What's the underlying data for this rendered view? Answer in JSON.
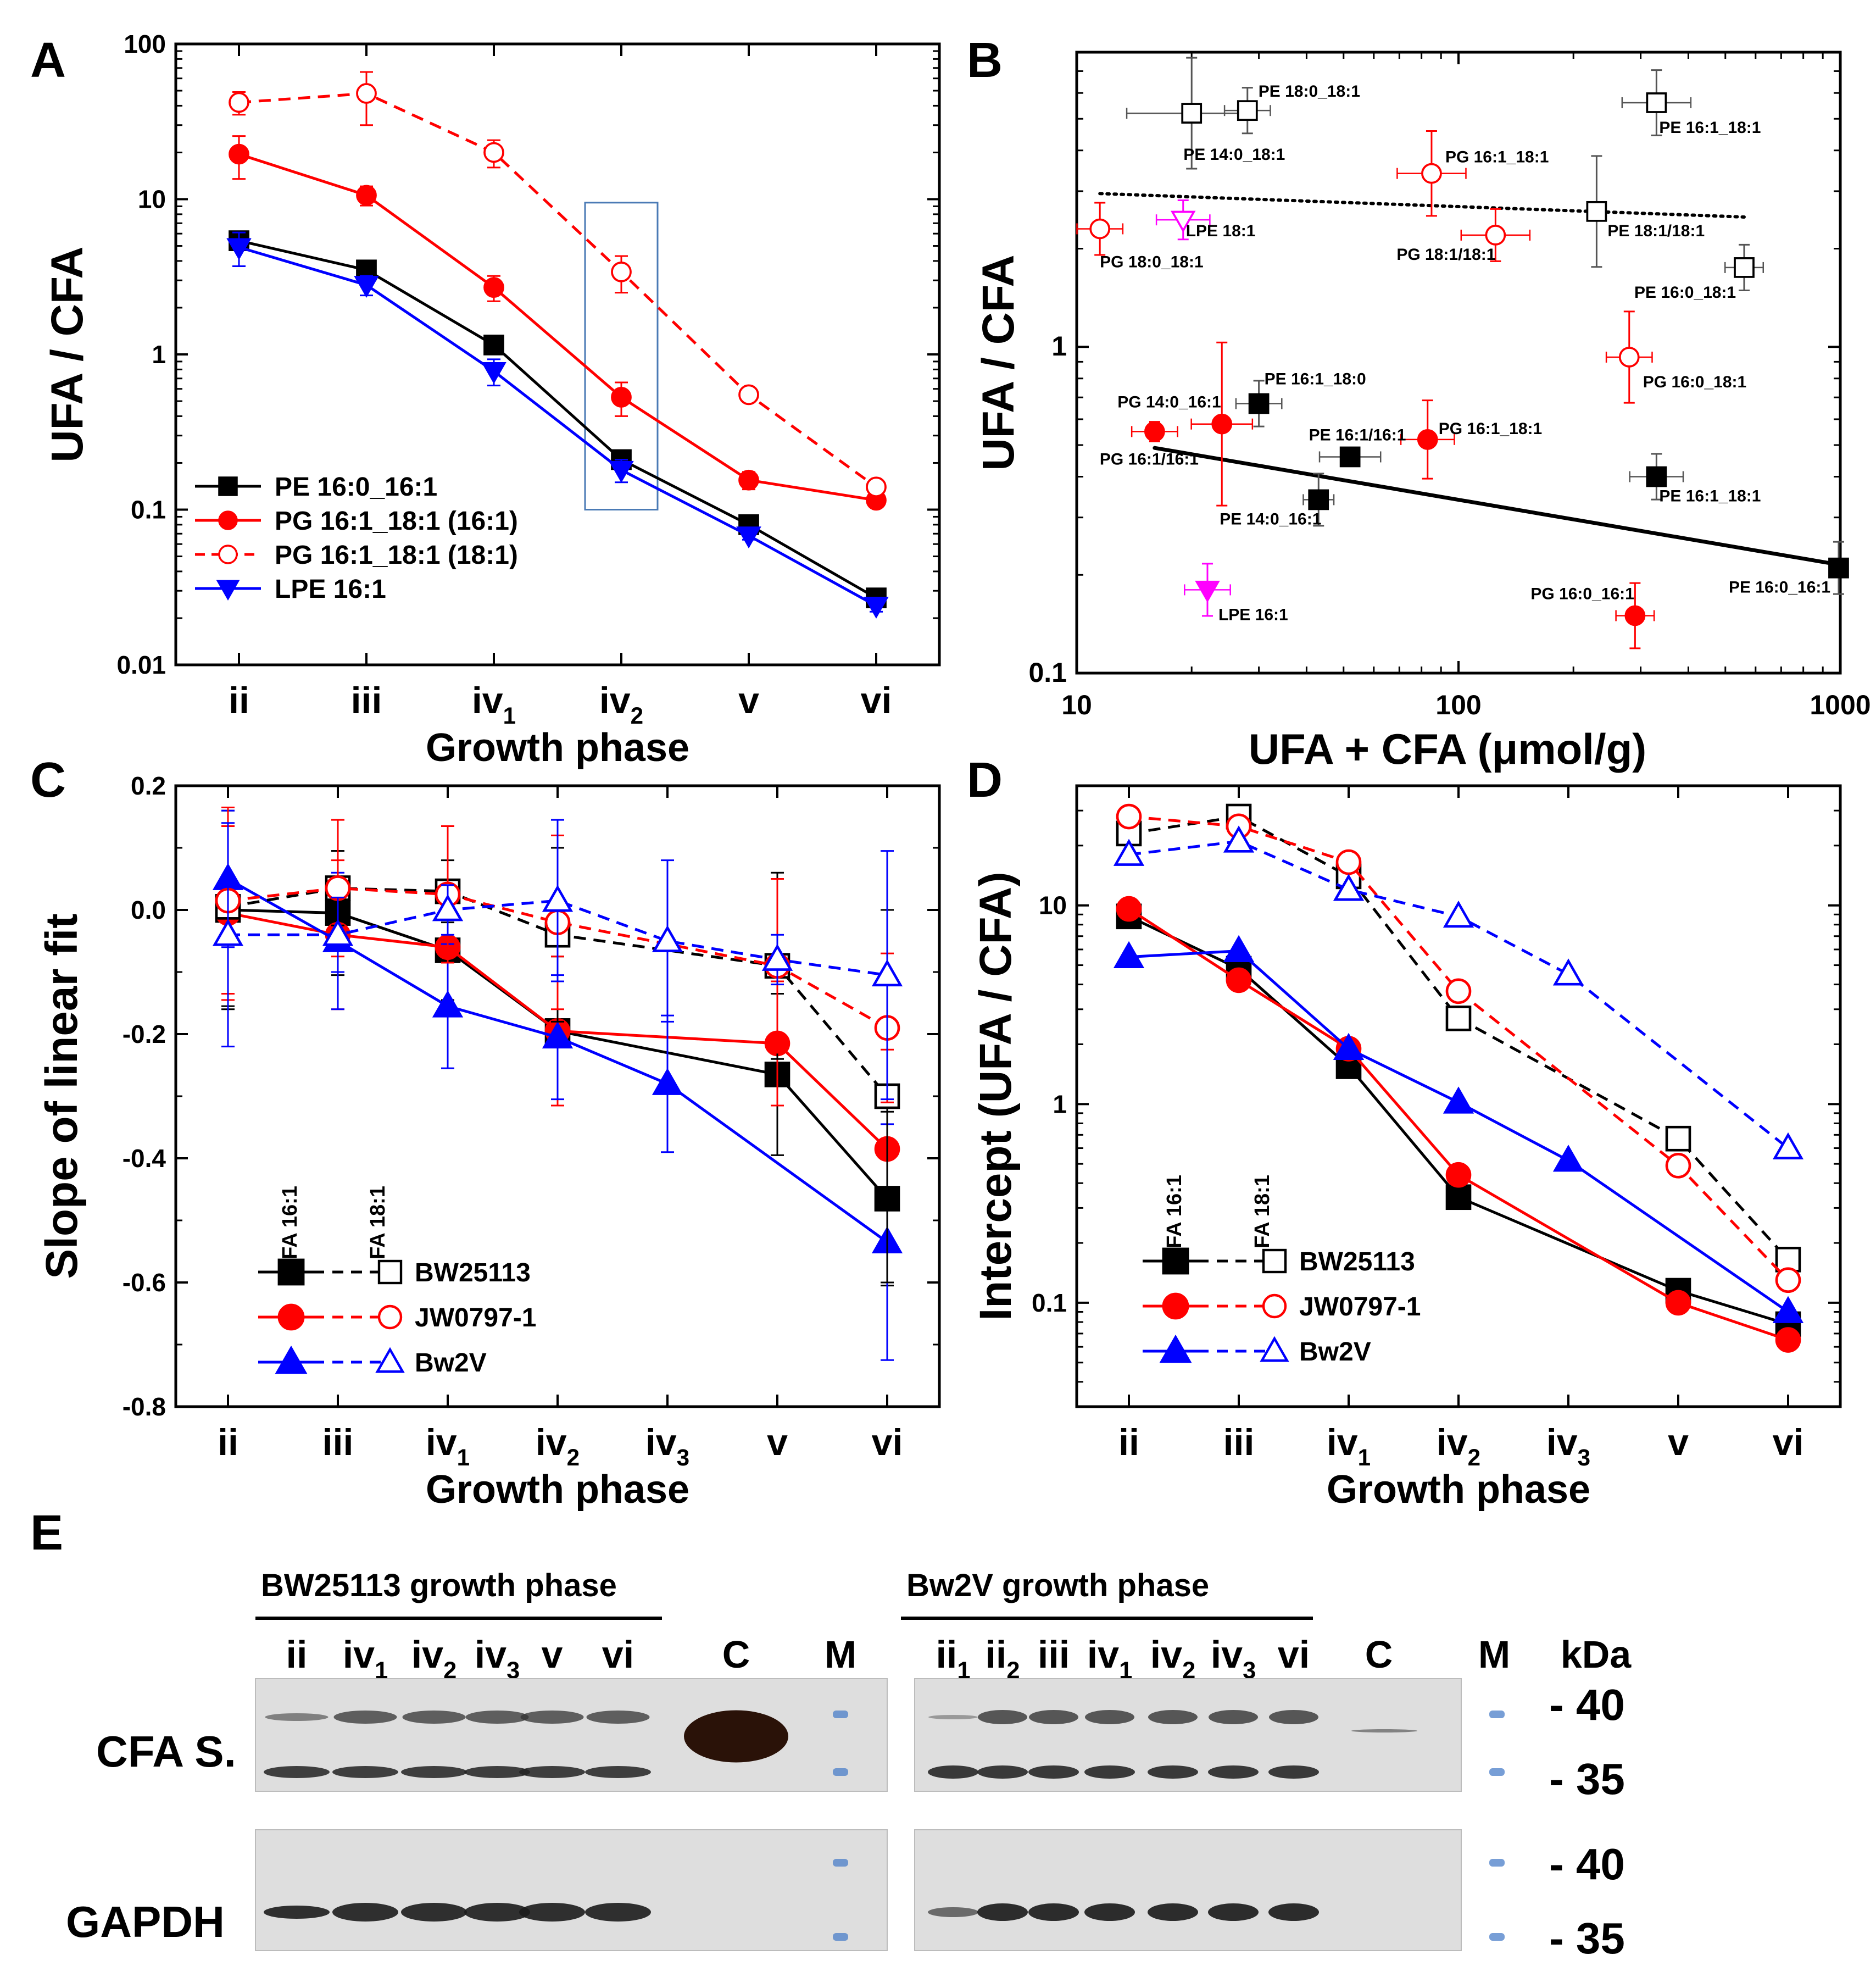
{
  "panels": {
    "A": {
      "letter": "A"
    },
    "B": {
      "letter": "B"
    },
    "C": {
      "letter": "C"
    },
    "D": {
      "letter": "D"
    },
    "E": {
      "letter": "E"
    }
  },
  "colors": {
    "black": "#000000",
    "red": "#ff0000",
    "blue": "#0000ff",
    "magenta": "#ff00ff",
    "box": "#4a7ab5",
    "gray": "#777777"
  },
  "chart_data": [
    {
      "id": "A",
      "type": "line",
      "yscale": "log",
      "ylabel": "UFA / CFA",
      "xlabel": "Growth phase",
      "ylim": [
        0.01,
        100
      ],
      "yticks": [
        "0.01",
        "0.1",
        "1",
        "10",
        "100"
      ],
      "categories": [
        {
          "base": "ii",
          "sub": ""
        },
        {
          "base": "iii",
          "sub": ""
        },
        {
          "base": "iv",
          "sub": "1"
        },
        {
          "base": "iv",
          "sub": "2"
        },
        {
          "base": "v",
          "sub": ""
        },
        {
          "base": "vi",
          "sub": ""
        }
      ],
      "highlight_category_index": 3,
      "series": [
        {
          "name": "PE 16:0_16:1",
          "color": "#000000",
          "marker": "square",
          "filled": true,
          "dash": false,
          "values": [
            5.4,
            3.5,
            1.15,
            0.21,
            0.08,
            0.027
          ],
          "err": [
            0.5,
            0.3,
            0.12,
            0.03,
            0.006,
            0.003
          ]
        },
        {
          "name": "PG 16:1_18:1 (16:1)",
          "color": "#ff0000",
          "marker": "circle",
          "filled": true,
          "dash": false,
          "values": [
            19.5,
            10.6,
            2.7,
            0.53,
            0.155,
            0.115
          ],
          "err": [
            6,
            1.5,
            0.5,
            0.13,
            0.02,
            0.008
          ]
        },
        {
          "name": "PG 16:1_18:1 (18:1)",
          "color": "#ff0000",
          "marker": "circle",
          "filled": false,
          "dash": true,
          "values": [
            42,
            48,
            20,
            3.4,
            0.55,
            0.14
          ],
          "err": [
            7,
            18,
            4,
            0.9,
            0.05,
            0.01
          ]
        },
        {
          "name": "LPE 16:1",
          "color": "#0000ff",
          "marker": "triangle-down",
          "filled": true,
          "dash": false,
          "values": [
            4.9,
            2.8,
            0.78,
            0.18,
            0.068,
            0.024
          ],
          "err": [
            1.2,
            0.4,
            0.15,
            0.03,
            0.004,
            0.002
          ]
        }
      ]
    },
    {
      "id": "B",
      "type": "scatter",
      "xscale": "log",
      "yscale": "log",
      "xlabel": "UFA + CFA (μmol/g)",
      "ylabel": "UFA / CFA",
      "xlim": [
        10,
        1000
      ],
      "ylim": [
        0.1,
        8
      ],
      "xticks": [
        "10",
        "100",
        "1000"
      ],
      "yticks": [
        "0.1",
        "1"
      ],
      "points": [
        {
          "label": "PE 14:0_18:1",
          "x": 20,
          "y": 5.2,
          "color": "#000000",
          "marker": "square",
          "filled": false,
          "xerr": 0.17,
          "yerr": 0.17
        },
        {
          "label": "PE 18:0_18:1",
          "x": 28,
          "y": 5.3,
          "color": "#000000",
          "marker": "square",
          "filled": false,
          "xerr": 0.06,
          "yerr": 0.07
        },
        {
          "label": "PE 16:1_18:1",
          "x": 330,
          "y": 5.6,
          "color": "#000000",
          "marker": "square",
          "filled": false,
          "xerr": 0.09,
          "yerr": 0.1
        },
        {
          "label": "PE 18:1/18:1",
          "x": 230,
          "y": 2.6,
          "color": "#000000",
          "marker": "square",
          "filled": false,
          "xerr": 0,
          "yerr": 0.17
        },
        {
          "label": "PE 16:0_18:1",
          "x": 560,
          "y": 1.75,
          "color": "#000000",
          "marker": "square",
          "filled": false,
          "xerr": 0.05,
          "yerr": 0.07
        },
        {
          "label": "PG 16:1_18:1",
          "x": 85,
          "y": 3.4,
          "color": "#ff0000",
          "marker": "circle",
          "filled": false,
          "xerr": 0.09,
          "yerr": 0.13
        },
        {
          "label": "PG 18:1/18:1",
          "x": 125,
          "y": 2.2,
          "color": "#ff0000",
          "marker": "circle",
          "filled": false,
          "xerr": 0.09,
          "yerr": 0.08
        },
        {
          "label": "PG 18:0_18:1",
          "x": 11.5,
          "y": 2.3,
          "color": "#ff0000",
          "marker": "circle",
          "filled": false,
          "xerr": 0.06,
          "yerr": 0.08
        },
        {
          "label": "LPE 18:1",
          "x": 19,
          "y": 2.45,
          "color": "#ff00ff",
          "marker": "triangle-down",
          "filled": false,
          "xerr": 0.07,
          "yerr": 0.06
        },
        {
          "label": "PG 16:0_18:1",
          "x": 280,
          "y": 0.93,
          "color": "#ff0000",
          "marker": "circle",
          "filled": false,
          "xerr": 0.06,
          "yerr": 0.14
        },
        {
          "label": "PE 16:1_18:0",
          "x": 30,
          "y": 0.67,
          "color": "#000000",
          "marker": "square",
          "filled": true,
          "xerr": 0.06,
          "yerr": 0.07
        },
        {
          "label": "PG 14:0_16:1",
          "x": 24,
          "y": 0.58,
          "color": "#ff0000",
          "marker": "circle",
          "filled": true,
          "xerr": 0.08,
          "yerr": 0.25
        },
        {
          "label": "PG 16:1/16:1",
          "x": 16,
          "y": 0.55,
          "color": "#ff0000",
          "marker": "circle",
          "filled": true,
          "xerr": 0.06,
          "yerr": 0.03
        },
        {
          "label": "PG 16:1_18:1",
          "x": 83,
          "y": 0.52,
          "color": "#ff0000",
          "marker": "circle",
          "filled": true,
          "xerr": 0.07,
          "yerr": 0.12
        },
        {
          "label": "PE 16:1/16:1",
          "x": 52,
          "y": 0.46,
          "color": "#000000",
          "marker": "square",
          "filled": true,
          "xerr": 0.08,
          "yerr": 0
        },
        {
          "label": "PE 14:0_16:1",
          "x": 43,
          "y": 0.34,
          "color": "#000000",
          "marker": "square",
          "filled": true,
          "xerr": 0.04,
          "yerr": 0.08
        },
        {
          "label": "PE 16:1_18:1",
          "x": 330,
          "y": 0.4,
          "color": "#000000",
          "marker": "square",
          "filled": true,
          "xerr": 0.07,
          "yerr": 0.07
        },
        {
          "label": "PE 16:0_16:1",
          "x": 990,
          "y": 0.21,
          "color": "#000000",
          "marker": "square",
          "filled": true,
          "xerr": 0,
          "yerr": 0.08
        },
        {
          "label": "LPE 16:1",
          "x": 22,
          "y": 0.18,
          "color": "#ff00ff",
          "marker": "triangle-down",
          "filled": true,
          "xerr": 0.06,
          "yerr": 0.08
        },
        {
          "label": "PG 16:0_16:1",
          "x": 290,
          "y": 0.15,
          "color": "#ff0000",
          "marker": "circle",
          "filled": true,
          "xerr": 0.05,
          "yerr": 0.1
        }
      ],
      "fits": [
        {
          "name": "dotted fit",
          "style": "dotted",
          "x": [
            11.5,
            560
          ],
          "y": [
            2.95,
            2.5
          ]
        },
        {
          "name": "solid fit",
          "style": "solid",
          "x": [
            16,
            990
          ],
          "y": [
            0.49,
            0.215
          ]
        }
      ]
    },
    {
      "id": "C",
      "type": "line",
      "ylabel": "Slope of linear fit",
      "xlabel": "Growth phase",
      "ylim": [
        -0.8,
        0.2
      ],
      "yticks": [
        "-0.8",
        "-0.6",
        "-0.4",
        "-0.2",
        "0.0",
        "0.2"
      ],
      "annotations": [
        "FA 16:1",
        "FA 18:1"
      ],
      "categories": [
        {
          "base": "ii",
          "sub": ""
        },
        {
          "base": "iii",
          "sub": ""
        },
        {
          "base": "iv",
          "sub": "1"
        },
        {
          "base": "iv",
          "sub": "2"
        },
        {
          "base": "iv",
          "sub": "3"
        },
        {
          "base": "v",
          "sub": ""
        },
        {
          "base": "vi",
          "sub": ""
        }
      ],
      "legend": [
        "BW25113",
        "JW0797-1",
        "Bw2V"
      ],
      "series": [
        {
          "name": "BW25113 (FA 16:1)",
          "color": "#000000",
          "marker": "square",
          "filled": true,
          "dash": false,
          "values": [
            0.0,
            -0.005,
            -0.065,
            -0.195,
            null,
            -0.265,
            -0.465
          ],
          "err": [
            0.16,
            0.1,
            0.08,
            0.12,
            null,
            0.13,
            0.14
          ]
        },
        {
          "name": "JW0797-1 (FA 16:1)",
          "color": "#ff0000",
          "marker": "circle",
          "filled": true,
          "dash": false,
          "values": [
            -0.005,
            -0.04,
            -0.06,
            -0.195,
            null,
            -0.215,
            -0.385
          ],
          "err": [
            0.14,
            0.12,
            0.09,
            0.12,
            null,
            0.1,
            0.16
          ]
        },
        {
          "name": "Bw2V (FA 16:1)",
          "color": "#0000ff",
          "marker": "triangle",
          "filled": true,
          "dash": false,
          "values": [
            0.05,
            -0.05,
            -0.155,
            -0.205,
            -0.28,
            null,
            -0.535
          ],
          "err": [
            0.11,
            0.11,
            0.1,
            0.1,
            0.11,
            null,
            0.19
          ]
        },
        {
          "name": "BW25113 (FA 18:1)",
          "color": "#000000",
          "marker": "square",
          "filled": false,
          "dash": true,
          "values": [
            0.005,
            0.035,
            0.03,
            -0.04,
            null,
            -0.09,
            -0.3
          ],
          "err": [
            0.16,
            0.06,
            0.05,
            0.14,
            null,
            0.15,
            0.3
          ]
        },
        {
          "name": "JW0797-1 (FA 18:1)",
          "color": "#ff0000",
          "marker": "circle",
          "filled": false,
          "dash": true,
          "values": [
            0.015,
            0.035,
            0.025,
            -0.02,
            null,
            -0.09,
            -0.19
          ],
          "err": [
            0.15,
            0.11,
            0.11,
            0.14,
            null,
            0.14,
            0.12
          ]
        },
        {
          "name": "Bw2V (FA 18:1)",
          "color": "#0000ff",
          "marker": "triangle",
          "filled": false,
          "dash": true,
          "values": [
            -0.04,
            -0.04,
            0.0,
            0.015,
            -0.05,
            -0.08,
            -0.105
          ],
          "err": [
            0.18,
            0.06,
            0.04,
            0.13,
            0.13,
            0.04,
            0.2
          ]
        }
      ]
    },
    {
      "id": "D",
      "type": "line",
      "yscale": "log",
      "ylabel": "Intercept (UFA / CFA)",
      "xlabel": "Growth phase",
      "ylim": [
        0.03,
        40
      ],
      "yticks": [
        "0.1",
        "1",
        "10"
      ],
      "annotations": [
        "FA 16:1",
        "FA 18:1"
      ],
      "categories": [
        {
          "base": "ii",
          "sub": ""
        },
        {
          "base": "iii",
          "sub": ""
        },
        {
          "base": "iv",
          "sub": "1"
        },
        {
          "base": "iv",
          "sub": "2"
        },
        {
          "base": "iv",
          "sub": "3"
        },
        {
          "base": "v",
          "sub": ""
        },
        {
          "base": "vi",
          "sub": ""
        }
      ],
      "legend": [
        "BW25113",
        "JW0797-1",
        "Bw2V"
      ],
      "series": [
        {
          "name": "BW25113 (FA 16:1)",
          "color": "#000000",
          "marker": "square",
          "filled": true,
          "dash": false,
          "values": [
            8.8,
            4.8,
            1.55,
            0.34,
            null,
            0.115,
            0.078
          ]
        },
        {
          "name": "JW0797-1 (FA 16:1)",
          "color": "#ff0000",
          "marker": "circle",
          "filled": true,
          "dash": false,
          "values": [
            9.6,
            4.2,
            1.9,
            0.44,
            null,
            0.1,
            0.065
          ]
        },
        {
          "name": "Bw2V (FA 16:1)",
          "color": "#0000ff",
          "marker": "triangle",
          "filled": true,
          "dash": false,
          "values": [
            5.5,
            5.9,
            1.9,
            1.02,
            0.52,
            null,
            0.09
          ]
        },
        {
          "name": "BW25113 (FA 18:1)",
          "color": "#000000",
          "marker": "square",
          "filled": false,
          "dash": true,
          "values": [
            23,
            28,
            14,
            2.7,
            null,
            0.67,
            0.165
          ]
        },
        {
          "name": "JW0797-1 (FA 18:1)",
          "color": "#ff0000",
          "marker": "circle",
          "filled": false,
          "dash": true,
          "values": [
            28,
            25,
            16.5,
            3.7,
            null,
            0.49,
            0.13
          ]
        },
        {
          "name": "Bw2V (FA 18:1)",
          "color": "#0000ff",
          "marker": "triangle",
          "filled": false,
          "dash": true,
          "values": [
            18,
            21,
            12,
            8.8,
            4.5,
            null,
            0.6
          ]
        }
      ]
    }
  ],
  "blot": {
    "left_group_label": "BW25113 growth phase",
    "left_lanes": [
      {
        "base": "ii",
        "sub": ""
      },
      {
        "base": "iv",
        "sub": "1"
      },
      {
        "base": "iv",
        "sub": "2"
      },
      {
        "base": "iv",
        "sub": "3"
      },
      {
        "base": "v",
        "sub": ""
      },
      {
        "base": "vi",
        "sub": ""
      }
    ],
    "right_group_label": "Bw2V growth phase",
    "right_lanes": [
      {
        "base": "ii",
        "sub": "1"
      },
      {
        "base": "ii",
        "sub": "2"
      },
      {
        "base": "iii",
        "sub": ""
      },
      {
        "base": "iv",
        "sub": "1"
      },
      {
        "base": "iv",
        "sub": "2"
      },
      {
        "base": "iv",
        "sub": "3"
      },
      {
        "base": "vi",
        "sub": ""
      }
    ],
    "control_label": "C",
    "marker_label": "M",
    "unit_label": "kDa",
    "mw_labels": [
      "- 40",
      "- 35",
      "- 40",
      "- 35"
    ],
    "row_labels": [
      "CFA S.",
      "GAPDH"
    ]
  }
}
